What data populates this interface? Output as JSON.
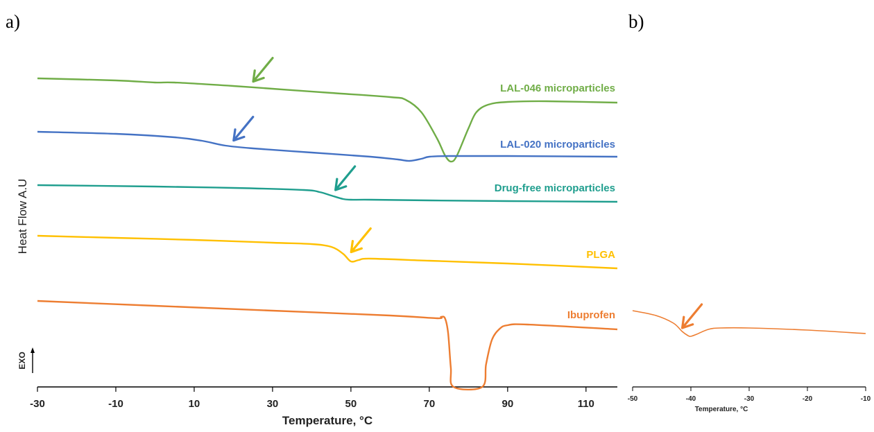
{
  "panels": {
    "a": "a)",
    "b": "b)"
  },
  "chart_data": [
    {
      "type": "line",
      "panel": "a)",
      "xlabel": "Temperature, °C",
      "ylabel": "Heat Flow  A.U",
      "exo_label": "EXO",
      "xlim": [
        -30,
        118
      ],
      "xticks": [
        -30,
        -10,
        10,
        30,
        50,
        70,
        90,
        110
      ],
      "tick_labels": [
        "-30",
        "-10",
        "10",
        "30",
        "50",
        "70",
        "90",
        "110"
      ],
      "y_units": "arbitrary (stacked)",
      "grid": false,
      "series": [
        {
          "name": "LAL-046 microparticles",
          "color": "#70AD47",
          "x": [
            -30,
            -10,
            0,
            5,
            20,
            30,
            45,
            60,
            64,
            68,
            72,
            74,
            75.5,
            77,
            80,
            82,
            85,
            90,
            100,
            118
          ],
          "y": [
            113,
            116,
            119,
            119,
            124,
            128,
            134,
            140,
            144,
            162,
            200,
            224,
            233,
            225,
            185,
            162,
            151,
            147,
            146,
            148
          ],
          "arrow_x": 24
        },
        {
          "name": "LAL-020 microparticles",
          "color": "#4472C4",
          "x": [
            -30,
            -10,
            5,
            12,
            18,
            25,
            40,
            55,
            62,
            65,
            68,
            70,
            75,
            90,
            118
          ],
          "y": [
            190,
            193,
            198,
            203,
            210,
            214,
            220,
            226,
            230,
            232,
            229,
            226,
            225,
            225,
            226
          ],
          "arrow_x": 19
        },
        {
          "name": "Drug-free microparticles",
          "color": "#1F9E8E",
          "x": [
            -30,
            0,
            20,
            38,
            42,
            45,
            48,
            50,
            55,
            70,
            90,
            118
          ],
          "y": [
            267,
            269,
            271,
            274,
            277,
            282,
            287,
            288,
            288,
            289,
            290,
            291
          ],
          "arrow_x": 45
        },
        {
          "name": "PLGA",
          "color": "#FFC000",
          "x": [
            -30,
            -10,
            10,
            30,
            40,
            45,
            48,
            50,
            52,
            55,
            70,
            90,
            118
          ],
          "y": [
            340,
            343,
            346,
            350,
            352,
            356,
            366,
            377,
            375,
            373,
            376,
            380,
            387
          ],
          "arrow_x": 49
        },
        {
          "name": "Ibuprofen",
          "color": "#ED7D31",
          "x": [
            -30,
            0,
            30,
            60,
            72,
            73,
            74,
            74.8,
            75.5,
            76.2,
            83.5,
            84.5,
            86,
            88,
            90,
            95,
            118
          ],
          "y": [
            434,
            441,
            448,
            455,
            459,
            457,
            459,
            480,
            530,
            558,
            558,
            525,
            490,
            474,
            469,
            468,
            475
          ],
          "arrow_x": null
        }
      ]
    },
    {
      "type": "line",
      "panel": "b)",
      "xlabel": "Temperature, °C",
      "xlim": [
        -50,
        -10
      ],
      "xticks": [
        -50,
        -40,
        -30,
        -20,
        -10
      ],
      "tick_labels": [
        "-50",
        "-40",
        "-30",
        "-20",
        "-10"
      ],
      "grid": false,
      "series": [
        {
          "name": "Ibuprofen",
          "color": "#ED7D31",
          "x": [
            -50,
            -46,
            -43,
            -41.5,
            -40.5,
            -40,
            -39,
            -37,
            -35,
            -30,
            -20,
            -10
          ],
          "y": [
            448,
            455,
            466,
            478,
            484,
            485,
            482,
            475,
            473,
            473,
            476,
            481
          ],
          "arrow_x": -41
        }
      ]
    }
  ]
}
